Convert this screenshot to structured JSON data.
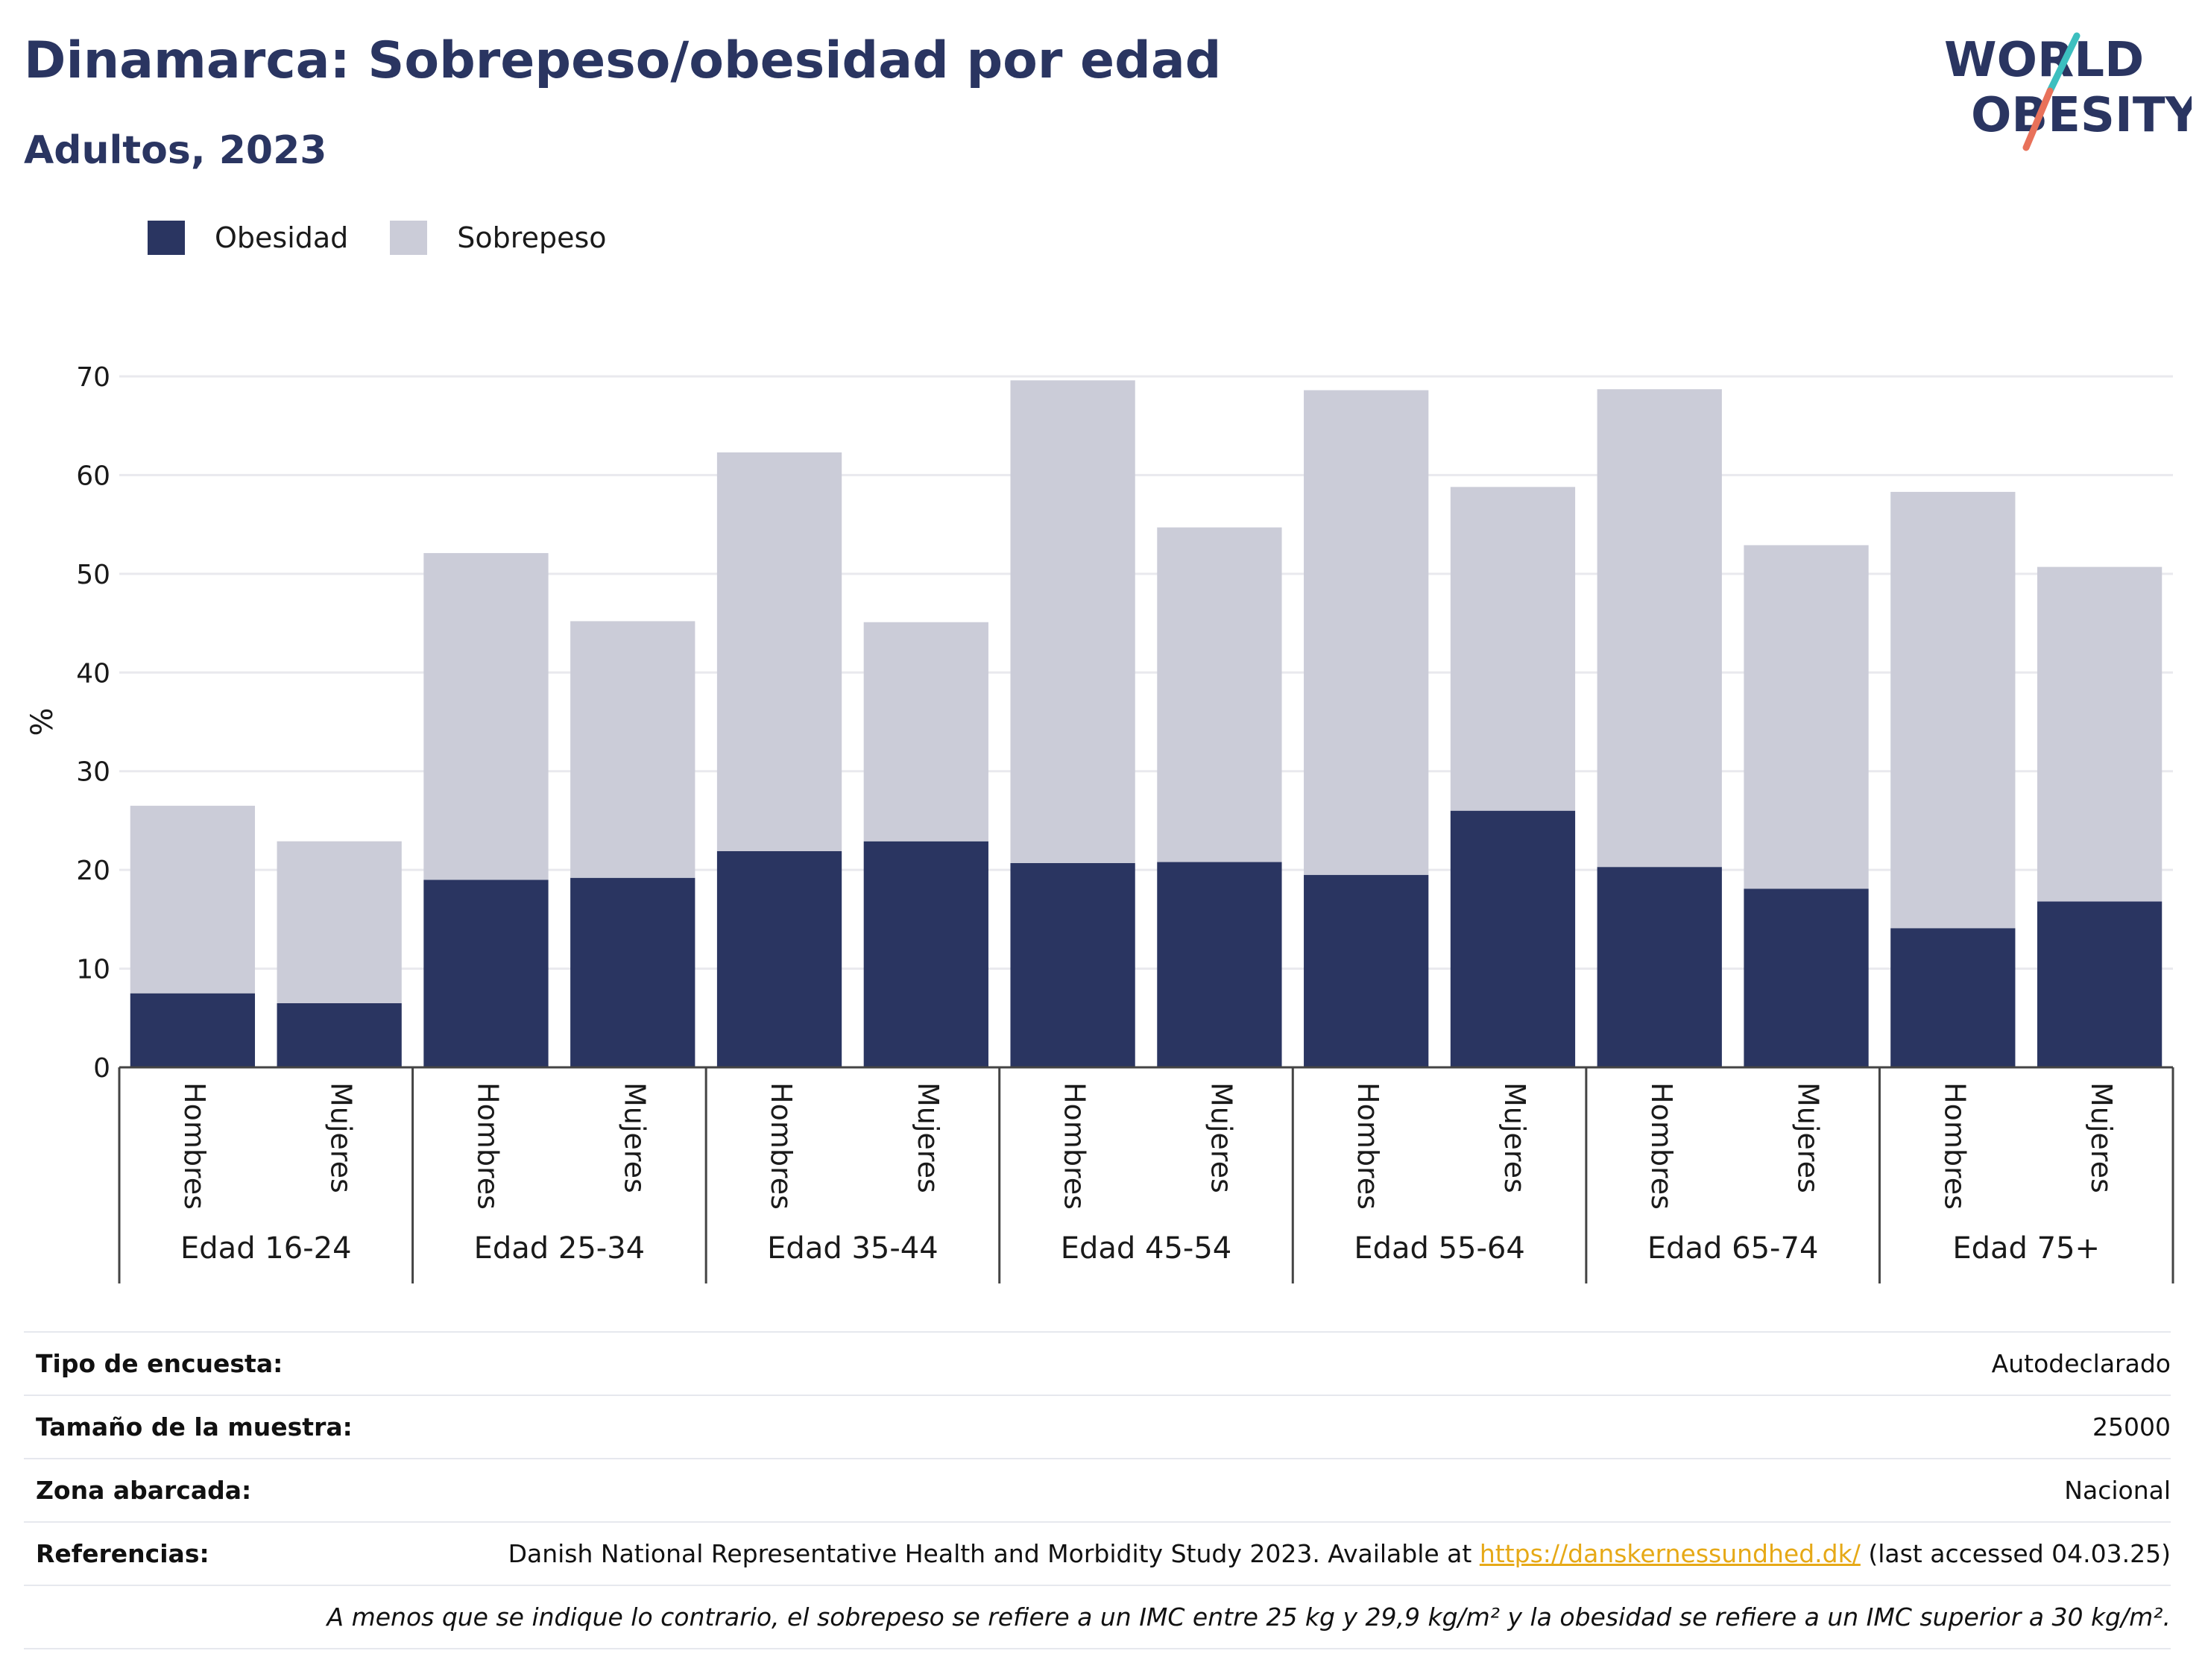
{
  "header": {
    "title": "Dinamarca: Sobrepeso/obesidad por edad",
    "subtitle": "Adultos, 2023"
  },
  "logo": {
    "line1": "WORLD",
    "line2": "OBESITY",
    "accent_teal": "#3cbfbf",
    "accent_coral": "#e8715a",
    "text_color": "#2a3561"
  },
  "colors": {
    "obesity": "#2a3561",
    "overweight": "#cbccd8",
    "link": "#e6a917"
  },
  "chart_data": {
    "type": "bar",
    "stacked": true,
    "title": "Dinamarca: Sobrepeso/obesidad por edad",
    "subtitle": "Adultos, 2023",
    "ylabel": "%",
    "ylim": [
      0,
      70
    ],
    "yticks": [
      0,
      10,
      20,
      30,
      40,
      50,
      60,
      70
    ],
    "grid": true,
    "legend_position": "top-left",
    "groups": [
      "Edad 16-24",
      "Edad 25-34",
      "Edad 35-44",
      "Edad 45-54",
      "Edad 55-64",
      "Edad 65-74",
      "Edad 75+"
    ],
    "subcategories": [
      "Hombres",
      "Mujeres"
    ],
    "categories": [
      "Hombres",
      "Mujeres",
      "Hombres",
      "Mujeres",
      "Hombres",
      "Mujeres",
      "Hombres",
      "Mujeres",
      "Hombres",
      "Mujeres",
      "Hombres",
      "Mujeres",
      "Hombres",
      "Mujeres"
    ],
    "series": [
      {
        "name": "Obesidad",
        "values": [
          7.5,
          6.5,
          19.0,
          19.2,
          21.9,
          22.9,
          20.7,
          20.8,
          19.5,
          26.0,
          20.3,
          18.1,
          14.1,
          16.8
        ]
      },
      {
        "name": "Sobrepeso",
        "values": [
          19.0,
          16.4,
          33.1,
          26.0,
          40.4,
          22.2,
          48.9,
          33.9,
          49.1,
          32.8,
          48.4,
          34.8,
          44.2,
          33.9
        ]
      }
    ],
    "totals": [
      26.5,
      22.9,
      52.1,
      45.2,
      62.3,
      45.1,
      69.6,
      54.7,
      68.6,
      58.8,
      68.7,
      52.9,
      58.3,
      50.7
    ]
  },
  "meta": {
    "survey_type_label": "Tipo de encuesta:",
    "survey_type_value": "Autodeclarado",
    "sample_size_label": "Tamaño de la muestra:",
    "sample_size_value": "25000",
    "coverage_label": "Zona abarcada:",
    "coverage_value": "Nacional",
    "references_label": "Referencias:",
    "references_prefix": "Danish National Representative Health and Morbidity Study 2023. Available at ",
    "references_link": "https://danskernessundhed.dk/",
    "references_suffix": " (last accessed 04.03.25)",
    "note": "A menos que se indique lo contrario, el sobrepeso se refiere a un IMC entre 25 kg y 29,9 kg/m² y la obesidad se refiere a un IMC superior a 30 kg/m²."
  }
}
